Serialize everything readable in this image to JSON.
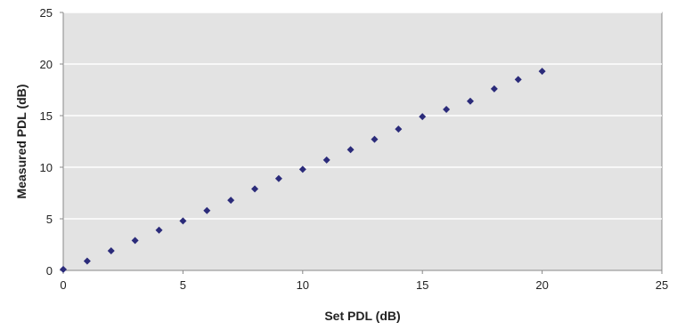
{
  "chart_data": {
    "type": "scatter",
    "title": "",
    "xlabel": "Set PDL (dB)",
    "ylabel": "Measured PDL (dB)",
    "xlim": [
      0,
      25
    ],
    "ylim": [
      0,
      25
    ],
    "xticks": [
      0,
      5,
      10,
      15,
      20,
      25
    ],
    "yticks": [
      0,
      5,
      10,
      15,
      20,
      25
    ],
    "grid": "horizontal",
    "legend": "none",
    "colors": {
      "plot_background": "#e3e3e3",
      "marker": "#2b2b7a",
      "grid": "#ffffff",
      "axis": "#888888"
    },
    "marker_shape": "diamond",
    "series": [
      {
        "x": [
          0,
          1,
          2,
          3,
          4,
          5,
          6,
          7,
          8,
          9,
          10,
          11,
          12,
          13,
          14,
          15,
          16,
          17,
          18,
          19,
          20
        ],
        "y": [
          0.1,
          0.9,
          1.9,
          2.9,
          3.9,
          4.8,
          5.8,
          6.8,
          7.9,
          8.9,
          9.8,
          10.7,
          11.7,
          12.7,
          13.7,
          14.9,
          15.6,
          16.4,
          17.6,
          18.5,
          19.3
        ]
      }
    ]
  }
}
